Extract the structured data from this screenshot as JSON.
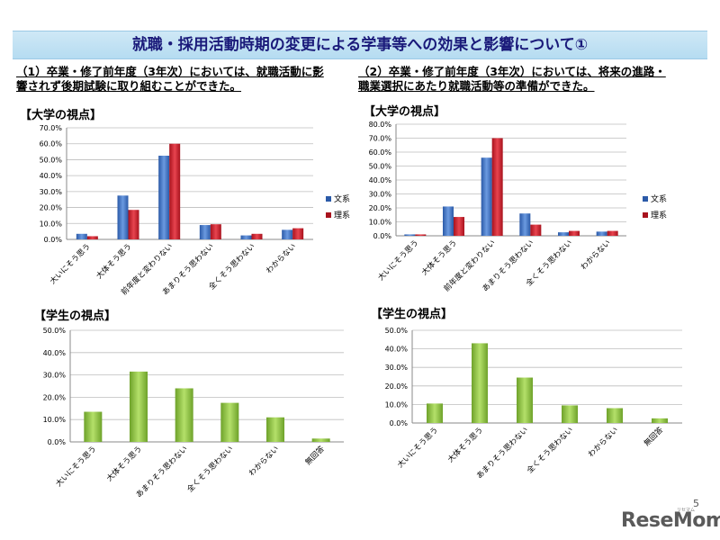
{
  "page": {
    "banner": "就職・採用活動時期の変更による学事等への効果と影響について①",
    "q1_line1": "（1）卒業・修了前年度（3年次）においては、就職活動に影",
    "q1_line2": "響されず後期試験に取り組むことができた。",
    "q2_line1": "（2）卒業・修了前年度（3年次）においては、将来の進路・",
    "q2_line2": "職業選択にあたり就職活動等の準備ができた。",
    "sec_univ_left": "【大学の視点】",
    "sec_univ_right": "【大学の視点】",
    "sec_stud_left": "【学生の視点】",
    "sec_stud_right": "【学生の視点】",
    "page_number": "5",
    "logo": "ReseMom",
    "logo_sub": "リセマム"
  },
  "colors": {
    "bunkei": "#3d6fc4",
    "rikei": "#d0202c",
    "student": "#8cc63f"
  },
  "chart_data": [
    {
      "id": "q1-univ",
      "type": "bar",
      "categories": [
        "大いにそう思う",
        "大体そう思う",
        "前年度と変わりない",
        "あまりそう思わない",
        "全くそう思わない",
        "わからない"
      ],
      "series": [
        {
          "name": "文系",
          "values": [
            3.5,
            27.5,
            52.5,
            9.0,
            2.5,
            6.0
          ]
        },
        {
          "name": "理系",
          "values": [
            2.0,
            18.5,
            60.0,
            9.5,
            3.5,
            7.0
          ]
        }
      ],
      "ylim": [
        0,
        70
      ],
      "yticks": [
        "0.0%",
        "10.0%",
        "20.0%",
        "30.0%",
        "40.0%",
        "50.0%",
        "60.0%",
        "70.0%"
      ],
      "legend": "right",
      "grid": true
    },
    {
      "id": "q2-univ",
      "type": "bar",
      "categories": [
        "大いにそう思う",
        "大体そう思う",
        "前年度と変わりない",
        "あまりそう思わない",
        "全くそう思わない",
        "わからない"
      ],
      "series": [
        {
          "name": "文系",
          "values": [
            1.0,
            21.0,
            56.0,
            16.0,
            2.5,
            3.0
          ]
        },
        {
          "name": "理系",
          "values": [
            1.0,
            13.5,
            70.0,
            8.0,
            3.5,
            3.5
          ]
        }
      ],
      "ylim": [
        0,
        80
      ],
      "yticks": [
        "0.0%",
        "10.0%",
        "20.0%",
        "30.0%",
        "40.0%",
        "50.0%",
        "60.0%",
        "70.0%",
        "80.0%"
      ],
      "legend": "right",
      "grid": true
    },
    {
      "id": "q1-stud",
      "type": "bar",
      "categories": [
        "大いにそう思う",
        "大体そう思う",
        "あまりそう思わない",
        "全くそう思わない",
        "わからない",
        "無回答"
      ],
      "series": [
        {
          "values": [
            13.5,
            31.5,
            24.0,
            17.5,
            11.0,
            1.5
          ]
        }
      ],
      "ylim": [
        0,
        50
      ],
      "yticks": [
        "0.0%",
        "10.0%",
        "20.0%",
        "30.0%",
        "40.0%",
        "50.0%"
      ],
      "grid": true
    },
    {
      "id": "q2-stud",
      "type": "bar",
      "categories": [
        "大いにそう思う",
        "大体そう思う",
        "あまりそう思わない",
        "全くそう思わない",
        "わからない",
        "無回答"
      ],
      "series": [
        {
          "values": [
            10.5,
            43.0,
            24.5,
            9.5,
            8.0,
            2.5
          ]
        }
      ],
      "ylim": [
        0,
        50
      ],
      "yticks": [
        "0.0%",
        "10.0%",
        "20.0%",
        "30.0%",
        "40.0%",
        "50.0%"
      ],
      "grid": true
    }
  ]
}
